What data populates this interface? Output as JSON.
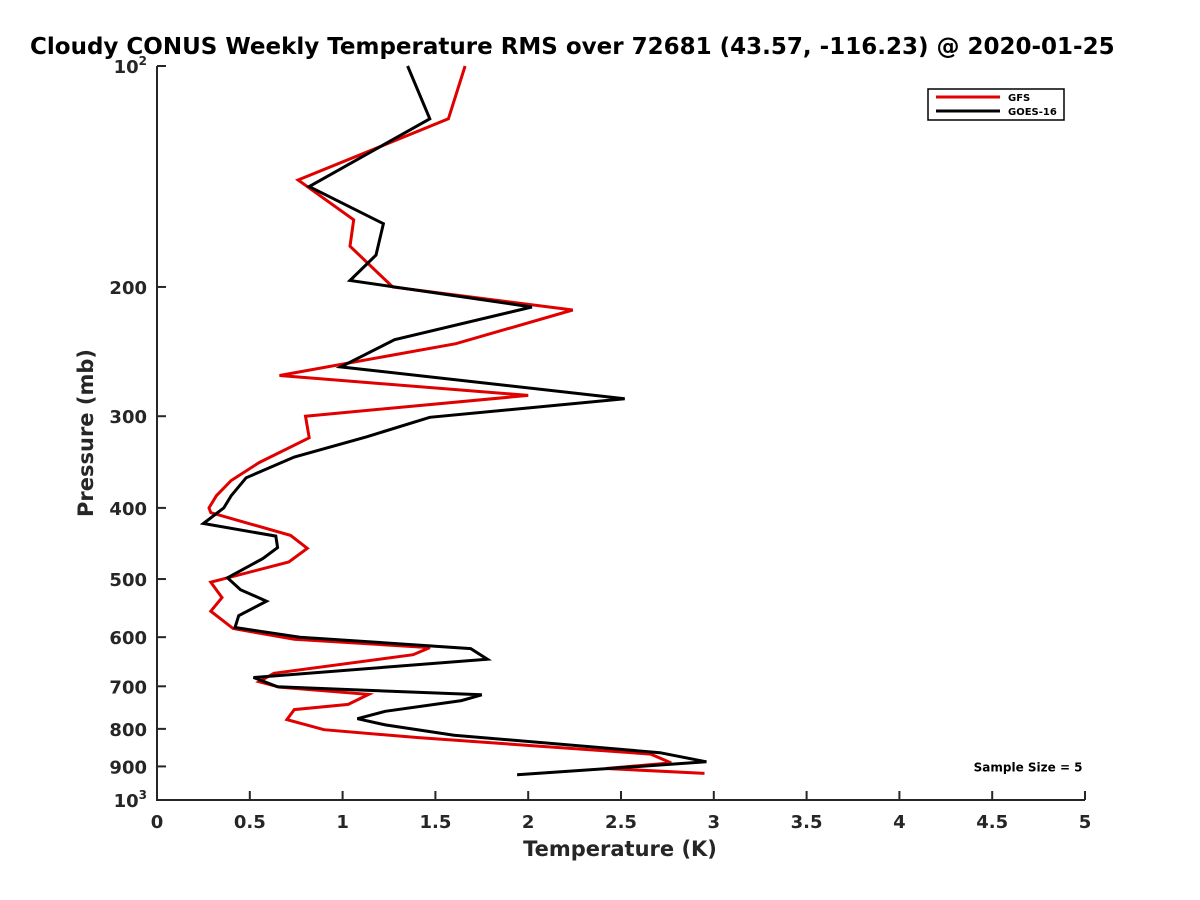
{
  "chart_data": {
    "type": "line",
    "title": "Cloudy CONUS Weekly Temperature RMS over 72681 (43.57, -116.23) @ 2020-01-25",
    "xlabel": "Temperature (K)",
    "ylabel": "Pressure (mb)",
    "xlim": [
      0,
      5
    ],
    "ylim": [
      100,
      1000
    ],
    "y_scale": "log",
    "y_reversed": true,
    "grid": false,
    "legend_position": "top-right",
    "x_ticks": [
      {
        "value": 0,
        "label": "0"
      },
      {
        "value": 0.5,
        "label": "0.5"
      },
      {
        "value": 1,
        "label": "1"
      },
      {
        "value": 1.5,
        "label": "1.5"
      },
      {
        "value": 2,
        "label": "2"
      },
      {
        "value": 2.5,
        "label": "2.5"
      },
      {
        "value": 3,
        "label": "3"
      },
      {
        "value": 3.5,
        "label": "3.5"
      },
      {
        "value": 4,
        "label": "4"
      },
      {
        "value": 4.5,
        "label": "4.5"
      },
      {
        "value": 5,
        "label": "5"
      }
    ],
    "y_ticks": [
      {
        "value": 100,
        "label": "10",
        "sup": "2"
      },
      {
        "value": 200,
        "label": "200",
        "sup": ""
      },
      {
        "value": 300,
        "label": "300",
        "sup": ""
      },
      {
        "value": 400,
        "label": "400",
        "sup": ""
      },
      {
        "value": 500,
        "label": "500",
        "sup": ""
      },
      {
        "value": 600,
        "label": "600",
        "sup": ""
      },
      {
        "value": 700,
        "label": "700",
        "sup": ""
      },
      {
        "value": 800,
        "label": "800",
        "sup": ""
      },
      {
        "value": 900,
        "label": "900",
        "sup": ""
      },
      {
        "value": 1000,
        "label": "10",
        "sup": "3"
      }
    ],
    "series": [
      {
        "name": "GFS",
        "color": "#e00000",
        "points": [
          [
            1.66,
            100
          ],
          [
            1.57,
            118
          ],
          [
            0.76,
            143
          ],
          [
            1.06,
            162
          ],
          [
            1.04,
            176
          ],
          [
            1.27,
            200
          ],
          [
            2.24,
            215
          ],
          [
            1.61,
            239
          ],
          [
            0.66,
            264
          ],
          [
            2.0,
            281
          ],
          [
            0.8,
            300
          ],
          [
            0.82,
            321
          ],
          [
            0.55,
            347
          ],
          [
            0.4,
            367
          ],
          [
            0.32,
            385
          ],
          [
            0.28,
            400
          ],
          [
            0.29,
            406
          ],
          [
            0.72,
            436
          ],
          [
            0.81,
            454
          ],
          [
            0.71,
            474
          ],
          [
            0.29,
            505
          ],
          [
            0.35,
            530
          ],
          [
            0.29,
            553
          ],
          [
            0.41,
            584
          ],
          [
            0.74,
            604
          ],
          [
            1.47,
            620
          ],
          [
            1.38,
            634
          ],
          [
            0.63,
            672
          ],
          [
            0.55,
            690
          ],
          [
            0.66,
            702
          ],
          [
            1.14,
            718
          ],
          [
            1.03,
            741
          ],
          [
            0.74,
            753
          ],
          [
            0.7,
            777
          ],
          [
            0.9,
            802
          ],
          [
            1.4,
            822
          ],
          [
            2.66,
            866
          ],
          [
            2.77,
            890
          ],
          [
            2.42,
            906
          ],
          [
            2.95,
            920
          ]
        ]
      },
      {
        "name": "GOES-16",
        "color": "#000000",
        "points": [
          [
            1.35,
            100
          ],
          [
            1.47,
            118
          ],
          [
            0.82,
            146
          ],
          [
            1.22,
            164
          ],
          [
            1.18,
            181
          ],
          [
            1.04,
            196
          ],
          [
            2.02,
            213
          ],
          [
            1.28,
            236
          ],
          [
            0.99,
            257
          ],
          [
            2.52,
            284
          ],
          [
            1.47,
            301
          ],
          [
            1.13,
            320
          ],
          [
            0.74,
            341
          ],
          [
            0.48,
            364
          ],
          [
            0.4,
            385
          ],
          [
            0.36,
            400
          ],
          [
            0.25,
            420
          ],
          [
            0.64,
            437
          ],
          [
            0.65,
            453
          ],
          [
            0.57,
            469
          ],
          [
            0.38,
            498
          ],
          [
            0.45,
            517
          ],
          [
            0.59,
            536
          ],
          [
            0.44,
            561
          ],
          [
            0.42,
            582
          ],
          [
            0.77,
            600
          ],
          [
            1.69,
            622
          ],
          [
            1.78,
            643
          ],
          [
            0.52,
            681
          ],
          [
            0.65,
            701
          ],
          [
            1.75,
            719
          ],
          [
            1.64,
            732
          ],
          [
            1.23,
            757
          ],
          [
            1.08,
            775
          ],
          [
            1.23,
            790
          ],
          [
            1.6,
            816
          ],
          [
            2.71,
            862
          ],
          [
            2.96,
            887
          ],
          [
            1.94,
            924
          ]
        ]
      }
    ],
    "annotations": [
      {
        "text": "Sample Size = 5",
        "x": 4.4,
        "y": 900
      }
    ]
  }
}
